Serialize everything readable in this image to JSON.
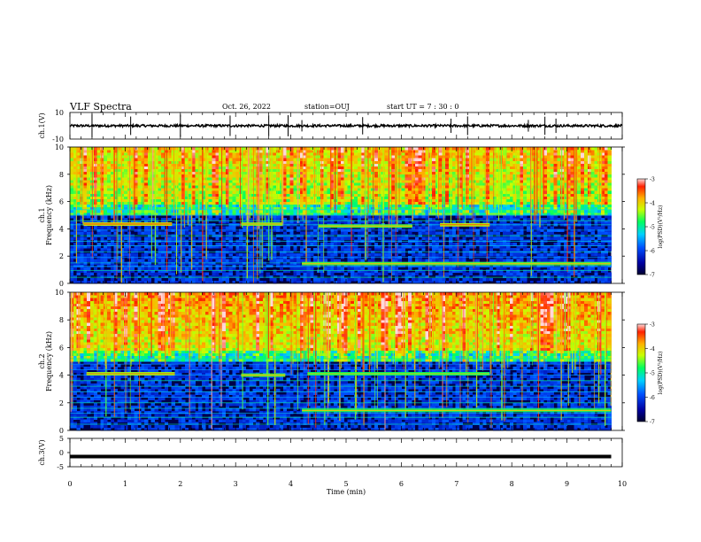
{
  "header": {
    "title": "VLF Spectra",
    "date": "Oct. 26, 2022",
    "station": "station=OUJ",
    "start": "start UT =  7 : 30 : 0"
  },
  "chart_data": [
    {
      "type": "line",
      "name": "waveform-ch1",
      "ylabel": "ch.1(V)",
      "ylim": [
        -10,
        10
      ],
      "yticks": [
        "10",
        "-10"
      ],
      "x_range": [
        0,
        10
      ],
      "approx_level": 0,
      "description_noise_amplitude_V": 1.5,
      "spikes_min": [
        0.4,
        1.1,
        2.0,
        2.9,
        3.6,
        3.95,
        4.2,
        5.3,
        6.9,
        7.2,
        8.3,
        8.6,
        8.8
      ]
    },
    {
      "type": "heatmap",
      "name": "spectrogram-ch1",
      "ylabel": "ch.1 Frequency (kHz)",
      "ylim": [
        0,
        10
      ],
      "yticks": [
        "0",
        "2",
        "4",
        "6",
        "8",
        "10"
      ],
      "x_range": [
        0,
        9.8
      ],
      "colorbar": {
        "label": "log(PSD)(V²/Hz)",
        "range": [
          -7,
          -3
        ],
        "ticks": [
          "-3",
          "-4",
          "-5",
          "-6",
          "-7"
        ]
      },
      "horizontal_lines_kHz": [
        0.45,
        0.95,
        1.25,
        1.5,
        1.9,
        2.3,
        2.75,
        3.1,
        3.5,
        3.9,
        4.3,
        4.6,
        5.0,
        5.4
      ],
      "bands": [
        {
          "x": [
            0.25,
            1.85
          ],
          "f": 4.35,
          "level": -4.2
        },
        {
          "x": [
            3.1,
            3.85
          ],
          "f": 4.35,
          "level": -4.5
        },
        {
          "x": [
            4.5,
            6.2
          ],
          "f": 4.2,
          "level": -4.6
        },
        {
          "x": [
            6.7,
            7.6
          ],
          "f": 4.3,
          "level": -4.3
        },
        {
          "x": [
            4.2,
            9.8
          ],
          "f": 1.45,
          "level": -4.6
        }
      ]
    },
    {
      "type": "heatmap",
      "name": "spectrogram-ch2",
      "ylabel": "ch.2 Frequency (kHz)",
      "ylim": [
        0,
        10
      ],
      "yticks": [
        "0",
        "2",
        "4",
        "6",
        "8",
        "10"
      ],
      "x_range": [
        0,
        9.8
      ],
      "colorbar": {
        "label": "log(PSD)(V²/Hz)",
        "range": [
          -7,
          -3
        ],
        "ticks": [
          "-3",
          "-4",
          "-5",
          "-6",
          "-7"
        ]
      },
      "horizontal_lines_kHz": [
        0.45,
        0.95,
        1.25,
        1.6,
        2.0,
        2.4,
        2.8,
        3.2,
        3.6,
        4.0,
        4.4,
        4.8,
        5.2
      ],
      "bands": [
        {
          "x": [
            0.3,
            1.9
          ],
          "f": 4.1,
          "level": -4.4
        },
        {
          "x": [
            3.1,
            3.9
          ],
          "f": 4.0,
          "level": -4.6
        },
        {
          "x": [
            4.3,
            7.6
          ],
          "f": 4.1,
          "level": -4.8
        },
        {
          "x": [
            4.2,
            9.8
          ],
          "f": 1.45,
          "level": -4.7
        }
      ]
    },
    {
      "type": "line",
      "name": "waveform-ch3",
      "ylabel": "ch.3(V)",
      "ylim": [
        -5,
        5
      ],
      "yticks": [
        "5",
        "0",
        "-5"
      ],
      "x_range": [
        0,
        9.8
      ],
      "approx_level": -1.4
    }
  ],
  "x_axis": {
    "label": "Time (min)",
    "range": [
      0,
      10
    ],
    "ticks": [
      "0",
      "1",
      "2",
      "3",
      "4",
      "5",
      "6",
      "7",
      "8",
      "9",
      "10"
    ]
  }
}
